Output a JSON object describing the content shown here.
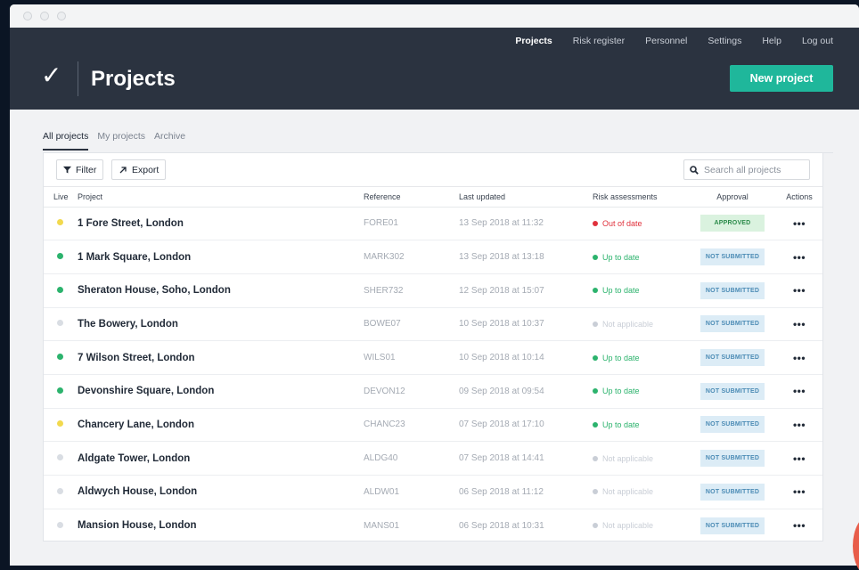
{
  "nav": {
    "links": [
      "Projects",
      "Risk register",
      "Personnel",
      "Settings",
      "Help",
      "Log out"
    ],
    "active": "Projects"
  },
  "header": {
    "logo_glyph": "✓",
    "title": "Projects",
    "new_button": "New project"
  },
  "tabs": [
    {
      "label": "All projects",
      "active": true
    },
    {
      "label": "My projects",
      "active": false
    },
    {
      "label": "Archive",
      "active": false
    }
  ],
  "toolbar": {
    "filter_label": "Filter",
    "export_label": "Export",
    "search_placeholder": "Search all projects",
    "filter_icon": "filter-icon",
    "export_icon": "export-arrow-icon",
    "search_icon": "search-icon"
  },
  "columns": {
    "live": "Live",
    "project": "Project",
    "reference": "Reference",
    "updated": "Last updated",
    "risk": "Risk assessments",
    "approval": "Approval",
    "actions": "Actions"
  },
  "colors": {
    "live_yellow": "#f2d94e",
    "live_green": "#2cb36d",
    "live_grey": "#d9dde3",
    "risk_out": "#e0313c",
    "risk_up": "#2cb36d",
    "risk_na": "#c9ced6",
    "approved_bg": "#daf2df",
    "approved_fg": "#2b8b4a",
    "not_submitted_bg": "#dcecf6",
    "not_submitted_fg": "#4b8bb5",
    "accent": "#1fb79b",
    "header_bg": "#2b3340"
  },
  "rows": [
    {
      "live": "yellow",
      "project": "1 Fore Street, London",
      "reference": "FORE01",
      "updated": "13 Sep 2018 at 11:32",
      "risk": "Out of date",
      "risk_status": "out",
      "approval": "APPROVED",
      "approval_status": "approved",
      "actions": "•••"
    },
    {
      "live": "green",
      "project": "1 Mark Square, London",
      "reference": "MARK302",
      "updated": "13 Sep 2018 at 13:18",
      "risk": "Up to date",
      "risk_status": "up",
      "approval": "NOT SUBMITTED",
      "approval_status": "not_submitted",
      "actions": "•••"
    },
    {
      "live": "green",
      "project": "Sheraton House, Soho, London",
      "reference": "SHER732",
      "updated": "12 Sep 2018 at 15:07",
      "risk": "Up to date",
      "risk_status": "up",
      "approval": "NOT SUBMITTED",
      "approval_status": "not_submitted",
      "actions": "•••"
    },
    {
      "live": "grey",
      "project": "The Bowery, London",
      "reference": "BOWE07",
      "updated": "10 Sep 2018 at 10:37",
      "risk": "Not applicable",
      "risk_status": "na",
      "approval": "NOT SUBMITTED",
      "approval_status": "not_submitted",
      "actions": "•••"
    },
    {
      "live": "green",
      "project": "7 Wilson Street, London",
      "reference": "WILS01",
      "updated": "10 Sep 2018 at 10:14",
      "risk": "Up to date",
      "risk_status": "up",
      "approval": "NOT SUBMITTED",
      "approval_status": "not_submitted",
      "actions": "•••"
    },
    {
      "live": "green",
      "project": "Devonshire Square, London",
      "reference": "DEVON12",
      "updated": "09 Sep 2018 at 09:54",
      "risk": "Up to date",
      "risk_status": "up",
      "approval": "NOT SUBMITTED",
      "approval_status": "not_submitted",
      "actions": "•••"
    },
    {
      "live": "yellow",
      "project": "Chancery Lane, London",
      "reference": "CHANC23",
      "updated": "07 Sep 2018 at 17:10",
      "risk": "Up to date",
      "risk_status": "up",
      "approval": "NOT SUBMITTED",
      "approval_status": "not_submitted",
      "actions": "•••"
    },
    {
      "live": "grey",
      "project": "Aldgate Tower, London",
      "reference": "ALDG40",
      "updated": "07 Sep 2018 at 14:41",
      "risk": "Not applicable",
      "risk_status": "na",
      "approval": "NOT SUBMITTED",
      "approval_status": "not_submitted",
      "actions": "•••"
    },
    {
      "live": "grey",
      "project": "Aldwych House, London",
      "reference": "ALDW01",
      "updated": "06 Sep 2018 at 11:12",
      "risk": "Not applicable",
      "risk_status": "na",
      "approval": "NOT SUBMITTED",
      "approval_status": "not_submitted",
      "actions": "•••"
    },
    {
      "live": "grey",
      "project": "Mansion House, London",
      "reference": "MANS01",
      "updated": "06 Sep 2018 at 10:31",
      "risk": "Not applicable",
      "risk_status": "na",
      "approval": "NOT SUBMITTED",
      "approval_status": "not_submitted",
      "actions": "•••"
    }
  ]
}
